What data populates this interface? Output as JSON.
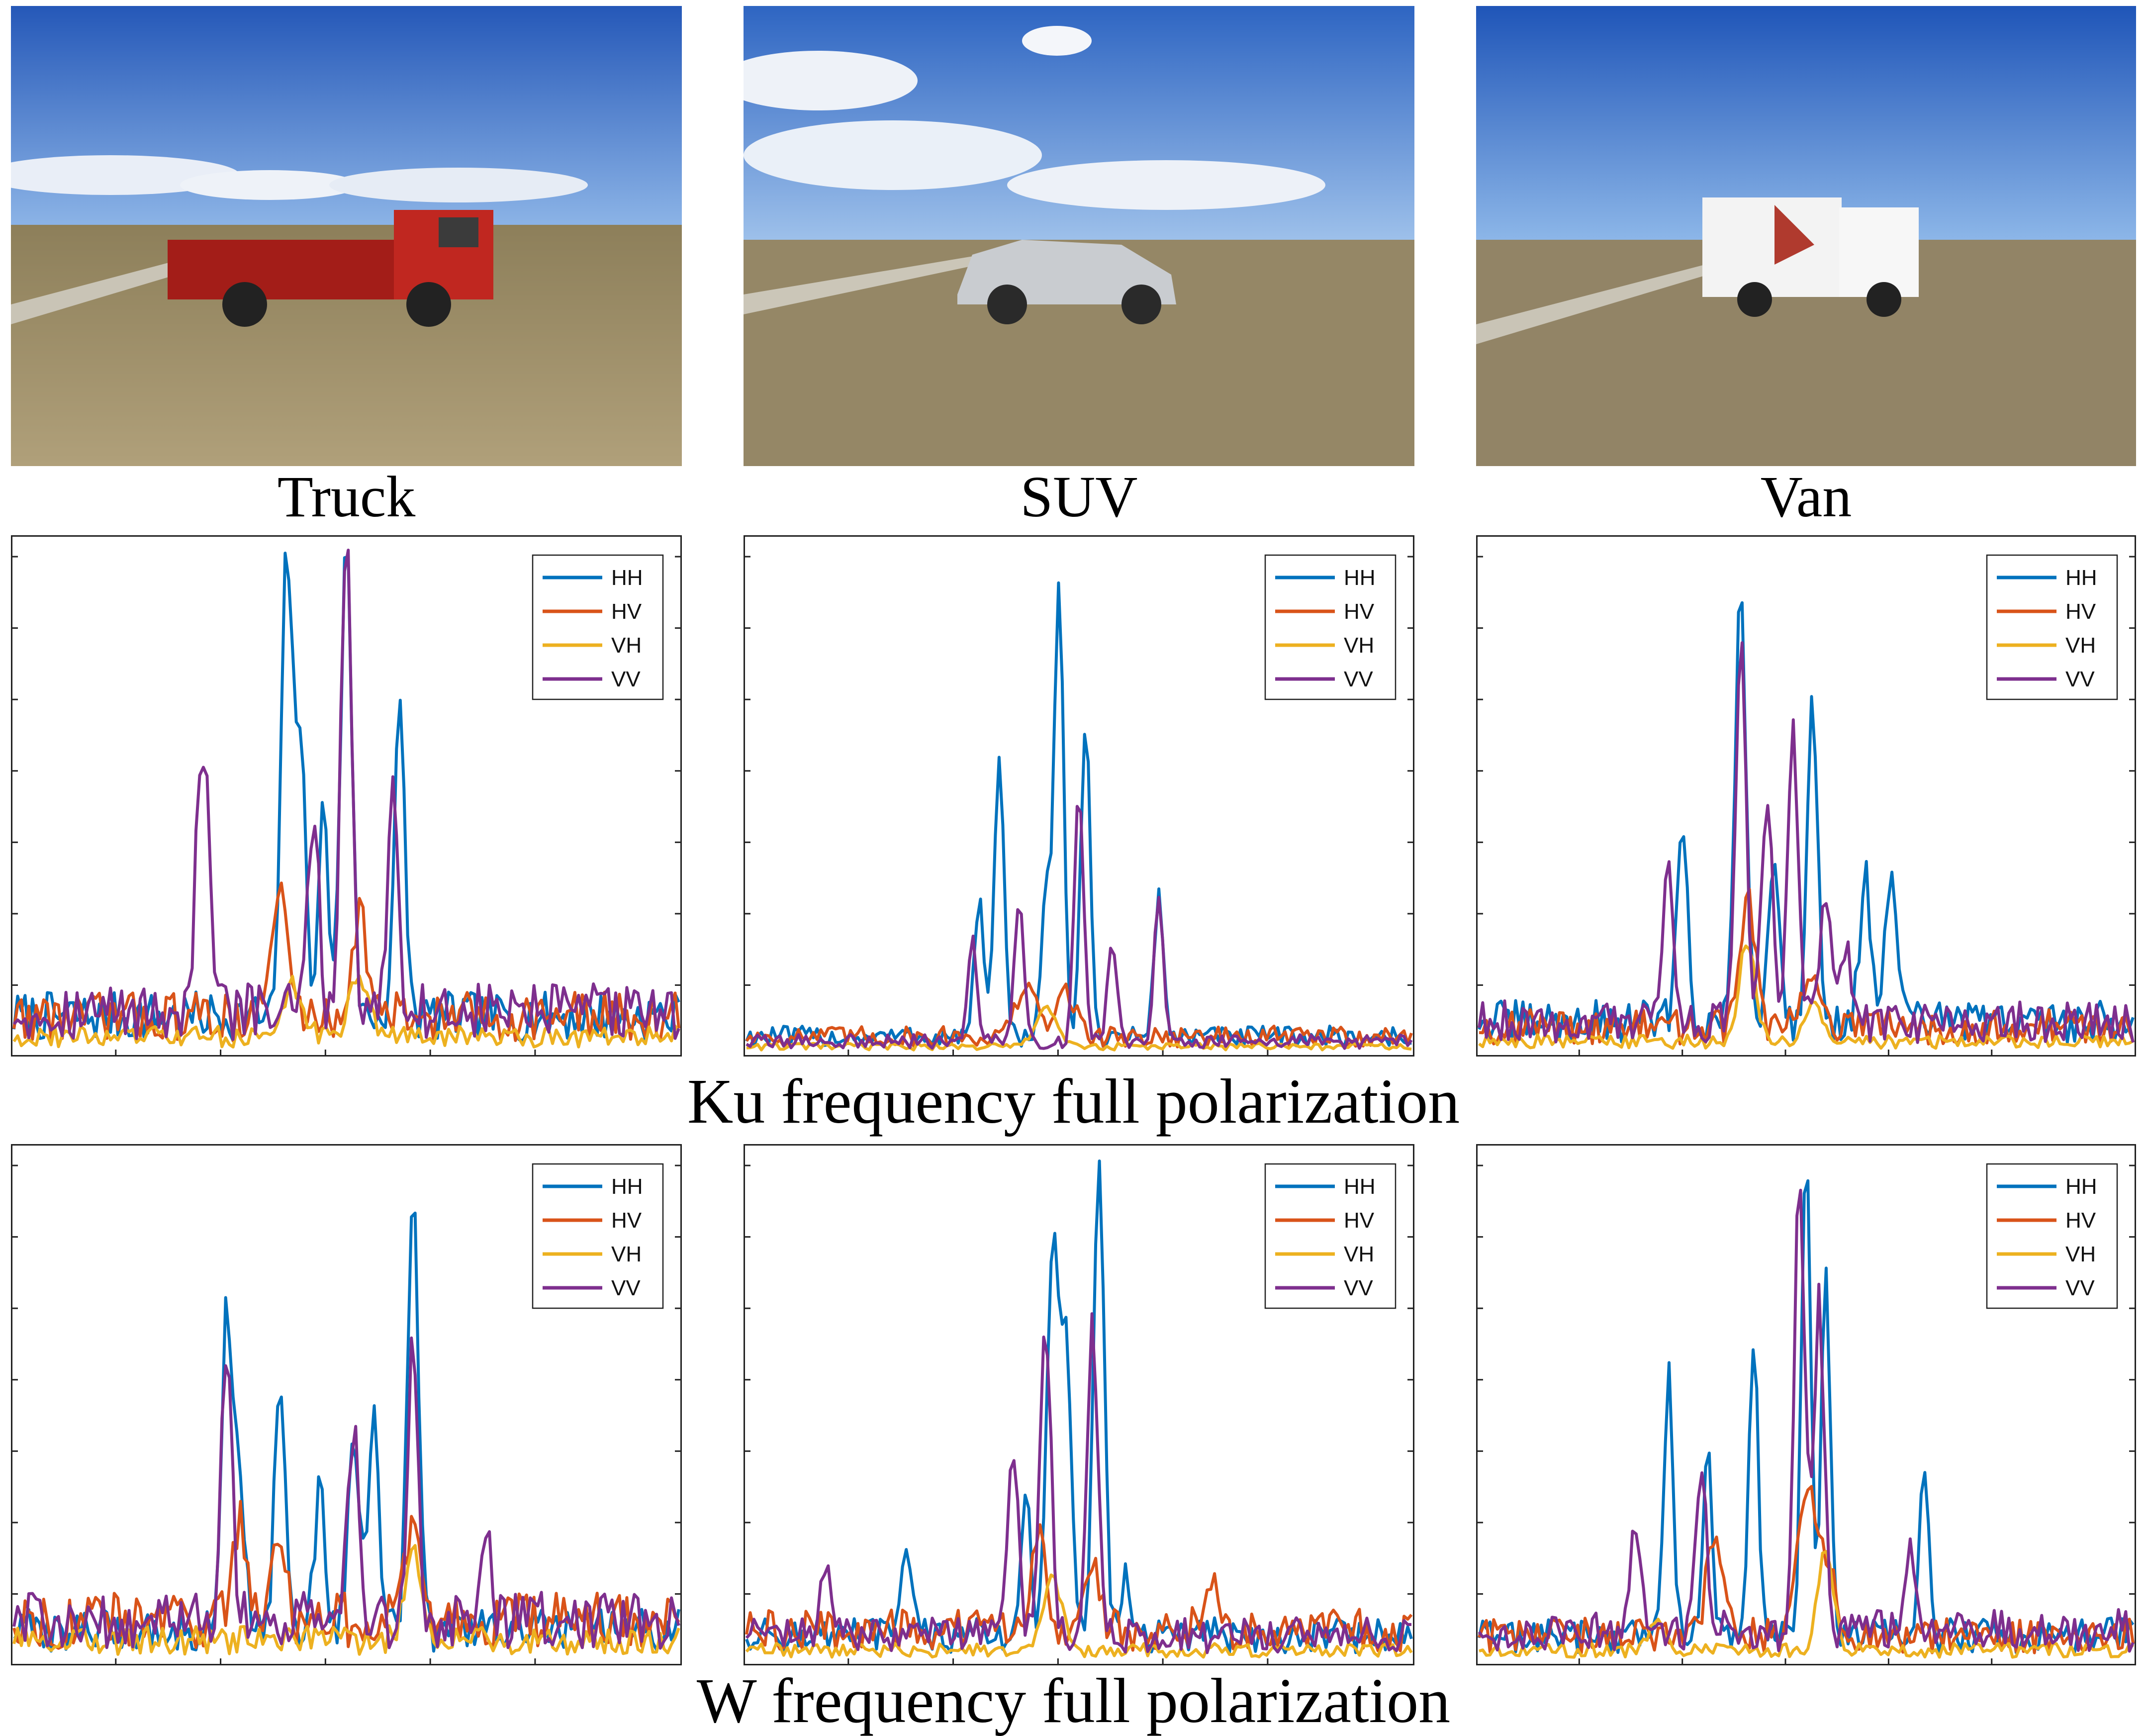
{
  "photos": [
    {
      "label": "Truck",
      "vehicle_color": "#b8231b"
    },
    {
      "label": "SUV",
      "vehicle_color": "#c9ccd0"
    },
    {
      "label": "Van",
      "vehicle_color": "#f3f3f3"
    }
  ],
  "row_captions": [
    "Ku frequency full polarization",
    "W frequency full polarization"
  ],
  "series_colors": {
    "HH": "#0072bd",
    "HV": "#d95319",
    "VH": "#edb120",
    "VV": "#7e2f8e"
  },
  "chart_data": [
    {
      "type": "line",
      "band": "Ku",
      "target": "Truck",
      "legend": [
        "HH",
        "HV",
        "VH",
        "VV"
      ],
      "ylim": [
        0,
        1
      ],
      "series": [
        {
          "name": "HH",
          "peaks": [
            [
              0.41,
              0.9
            ],
            [
              0.43,
              0.56
            ],
            [
              0.465,
              0.4
            ],
            [
              0.5,
              0.99
            ],
            [
              0.58,
              0.6
            ]
          ],
          "width": 0.008,
          "base": 0.07
        },
        {
          "name": "HV",
          "peaks": [
            [
              0.4,
              0.25
            ],
            [
              0.52,
              0.2
            ]
          ],
          "width": 0.012,
          "base": 0.07
        },
        {
          "name": "VH",
          "peaks": [
            [
              0.42,
              0.1
            ],
            [
              0.52,
              0.12
            ]
          ],
          "width": 0.015,
          "base": 0.03
        },
        {
          "name": "VV",
          "peaks": [
            [
              0.28,
              0.38
            ],
            [
              0.29,
              0.26
            ],
            [
              0.45,
              0.4
            ],
            [
              0.5,
              0.97
            ],
            [
              0.57,
              0.45
            ]
          ],
          "width": 0.008,
          "base": 0.08
        }
      ]
    },
    {
      "type": "line",
      "band": "Ku",
      "target": "SUV",
      "legend": [
        "HH",
        "HV",
        "VH",
        "VV"
      ],
      "ylim": [
        0,
        1
      ],
      "series": [
        {
          "name": "HH",
          "peaks": [
            [
              0.35,
              0.28
            ],
            [
              0.38,
              0.55
            ],
            [
              0.45,
              0.3
            ],
            [
              0.47,
              0.9
            ],
            [
              0.51,
              0.62
            ],
            [
              0.62,
              0.28
            ]
          ],
          "width": 0.007,
          "base": 0.03
        },
        {
          "name": "HV",
          "peaks": [
            [
              0.42,
              0.1
            ],
            [
              0.48,
              0.09
            ]
          ],
          "width": 0.015,
          "base": 0.03
        },
        {
          "name": "VH",
          "peaks": [
            [
              0.45,
              0.08
            ]
          ],
          "width": 0.015,
          "base": 0.01
        },
        {
          "name": "VV",
          "peaks": [
            [
              0.34,
              0.2
            ],
            [
              0.41,
              0.28
            ],
            [
              0.5,
              0.5
            ],
            [
              0.55,
              0.2
            ],
            [
              0.62,
              0.3
            ]
          ],
          "width": 0.007,
          "base": 0.02
        }
      ]
    },
    {
      "type": "line",
      "band": "Ku",
      "target": "Van",
      "legend": [
        "HH",
        "HV",
        "VH",
        "VV"
      ],
      "ylim": [
        0,
        1
      ],
      "series": [
        {
          "name": "HH",
          "peaks": [
            [
              0.31,
              0.4
            ],
            [
              0.4,
              0.9
            ],
            [
              0.45,
              0.34
            ],
            [
              0.51,
              0.64
            ],
            [
              0.59,
              0.3
            ],
            [
              0.63,
              0.32
            ]
          ],
          "width": 0.008,
          "base": 0.06
        },
        {
          "name": "HV",
          "peaks": [
            [
              0.41,
              0.25
            ],
            [
              0.51,
              0.12
            ]
          ],
          "width": 0.012,
          "base": 0.05
        },
        {
          "name": "VH",
          "peaks": [
            [
              0.41,
              0.2
            ],
            [
              0.51,
              0.08
            ]
          ],
          "width": 0.012,
          "base": 0.02
        },
        {
          "name": "VV",
          "peaks": [
            [
              0.29,
              0.3
            ],
            [
              0.4,
              0.75
            ],
            [
              0.48,
              0.58
            ],
            [
              0.44,
              0.45
            ],
            [
              0.53,
              0.25
            ],
            [
              0.56,
              0.15
            ]
          ],
          "width": 0.008,
          "base": 0.06
        }
      ]
    },
    {
      "type": "line",
      "band": "W",
      "target": "Truck",
      "legend": [
        "HH",
        "HV",
        "VH",
        "VV"
      ],
      "ylim": [
        0,
        1
      ],
      "series": [
        {
          "name": "HH",
          "peaks": [
            [
              0.32,
              0.65
            ],
            [
              0.34,
              0.3
            ],
            [
              0.4,
              0.5
            ],
            [
              0.46,
              0.28
            ],
            [
              0.51,
              0.42
            ],
            [
              0.54,
              0.42
            ],
            [
              0.6,
              0.9
            ]
          ],
          "width": 0.008,
          "base": 0.06
        },
        {
          "name": "HV",
          "peaks": [
            [
              0.34,
              0.22
            ],
            [
              0.4,
              0.18
            ],
            [
              0.6,
              0.2
            ]
          ],
          "width": 0.01,
          "base": 0.08
        },
        {
          "name": "VH",
          "peaks": [
            [
              0.6,
              0.2
            ]
          ],
          "width": 0.012,
          "base": 0.04
        },
        {
          "name": "VV",
          "peaks": [
            [
              0.32,
              0.55
            ],
            [
              0.51,
              0.38
            ],
            [
              0.6,
              0.55
            ],
            [
              0.71,
              0.18
            ]
          ],
          "width": 0.008,
          "base": 0.08
        }
      ]
    },
    {
      "type": "line",
      "band": "W",
      "target": "SUV",
      "legend": [
        "HH",
        "HV",
        "VH",
        "VV"
      ],
      "ylim": [
        0,
        1
      ],
      "series": [
        {
          "name": "HH",
          "peaks": [
            [
              0.24,
              0.16
            ],
            [
              0.42,
              0.28
            ],
            [
              0.46,
              0.78
            ],
            [
              0.48,
              0.6
            ],
            [
              0.53,
              0.92
            ],
            [
              0.57,
              0.12
            ]
          ],
          "width": 0.008,
          "base": 0.05
        },
        {
          "name": "HV",
          "peaks": [
            [
              0.44,
              0.2
            ],
            [
              0.52,
              0.12
            ],
            [
              0.7,
              0.12
            ]
          ],
          "width": 0.012,
          "base": 0.06
        },
        {
          "name": "VH",
          "peaks": [
            [
              0.46,
              0.14
            ]
          ],
          "width": 0.015,
          "base": 0.02
        },
        {
          "name": "VV",
          "peaks": [
            [
              0.4,
              0.38
            ],
            [
              0.45,
              0.62
            ],
            [
              0.52,
              0.62
            ],
            [
              0.12,
              0.15
            ]
          ],
          "width": 0.008,
          "base": 0.05
        }
      ]
    },
    {
      "type": "line",
      "band": "W",
      "target": "Van",
      "legend": [
        "HH",
        "HV",
        "VH",
        "VV"
      ],
      "ylim": [
        0,
        1
      ],
      "series": [
        {
          "name": "HH",
          "peaks": [
            [
              0.29,
              0.53
            ],
            [
              0.35,
              0.35
            ],
            [
              0.42,
              0.58
            ],
            [
              0.5,
              0.98
            ],
            [
              0.53,
              0.72
            ],
            [
              0.68,
              0.32
            ]
          ],
          "width": 0.007,
          "base": 0.05
        },
        {
          "name": "HV",
          "peaks": [
            [
              0.36,
              0.2
            ],
            [
              0.5,
              0.3
            ],
            [
              0.53,
              0.16
            ]
          ],
          "width": 0.012,
          "base": 0.05
        },
        {
          "name": "VH",
          "peaks": [
            [
              0.53,
              0.2
            ],
            [
              0.27,
              0.06
            ]
          ],
          "width": 0.012,
          "base": 0.02
        },
        {
          "name": "VV",
          "peaks": [
            [
              0.24,
              0.2
            ],
            [
              0.34,
              0.3
            ],
            [
              0.49,
              0.93
            ],
            [
              0.52,
              0.65
            ],
            [
              0.66,
              0.15
            ]
          ],
          "width": 0.008,
          "base": 0.06
        }
      ]
    }
  ]
}
